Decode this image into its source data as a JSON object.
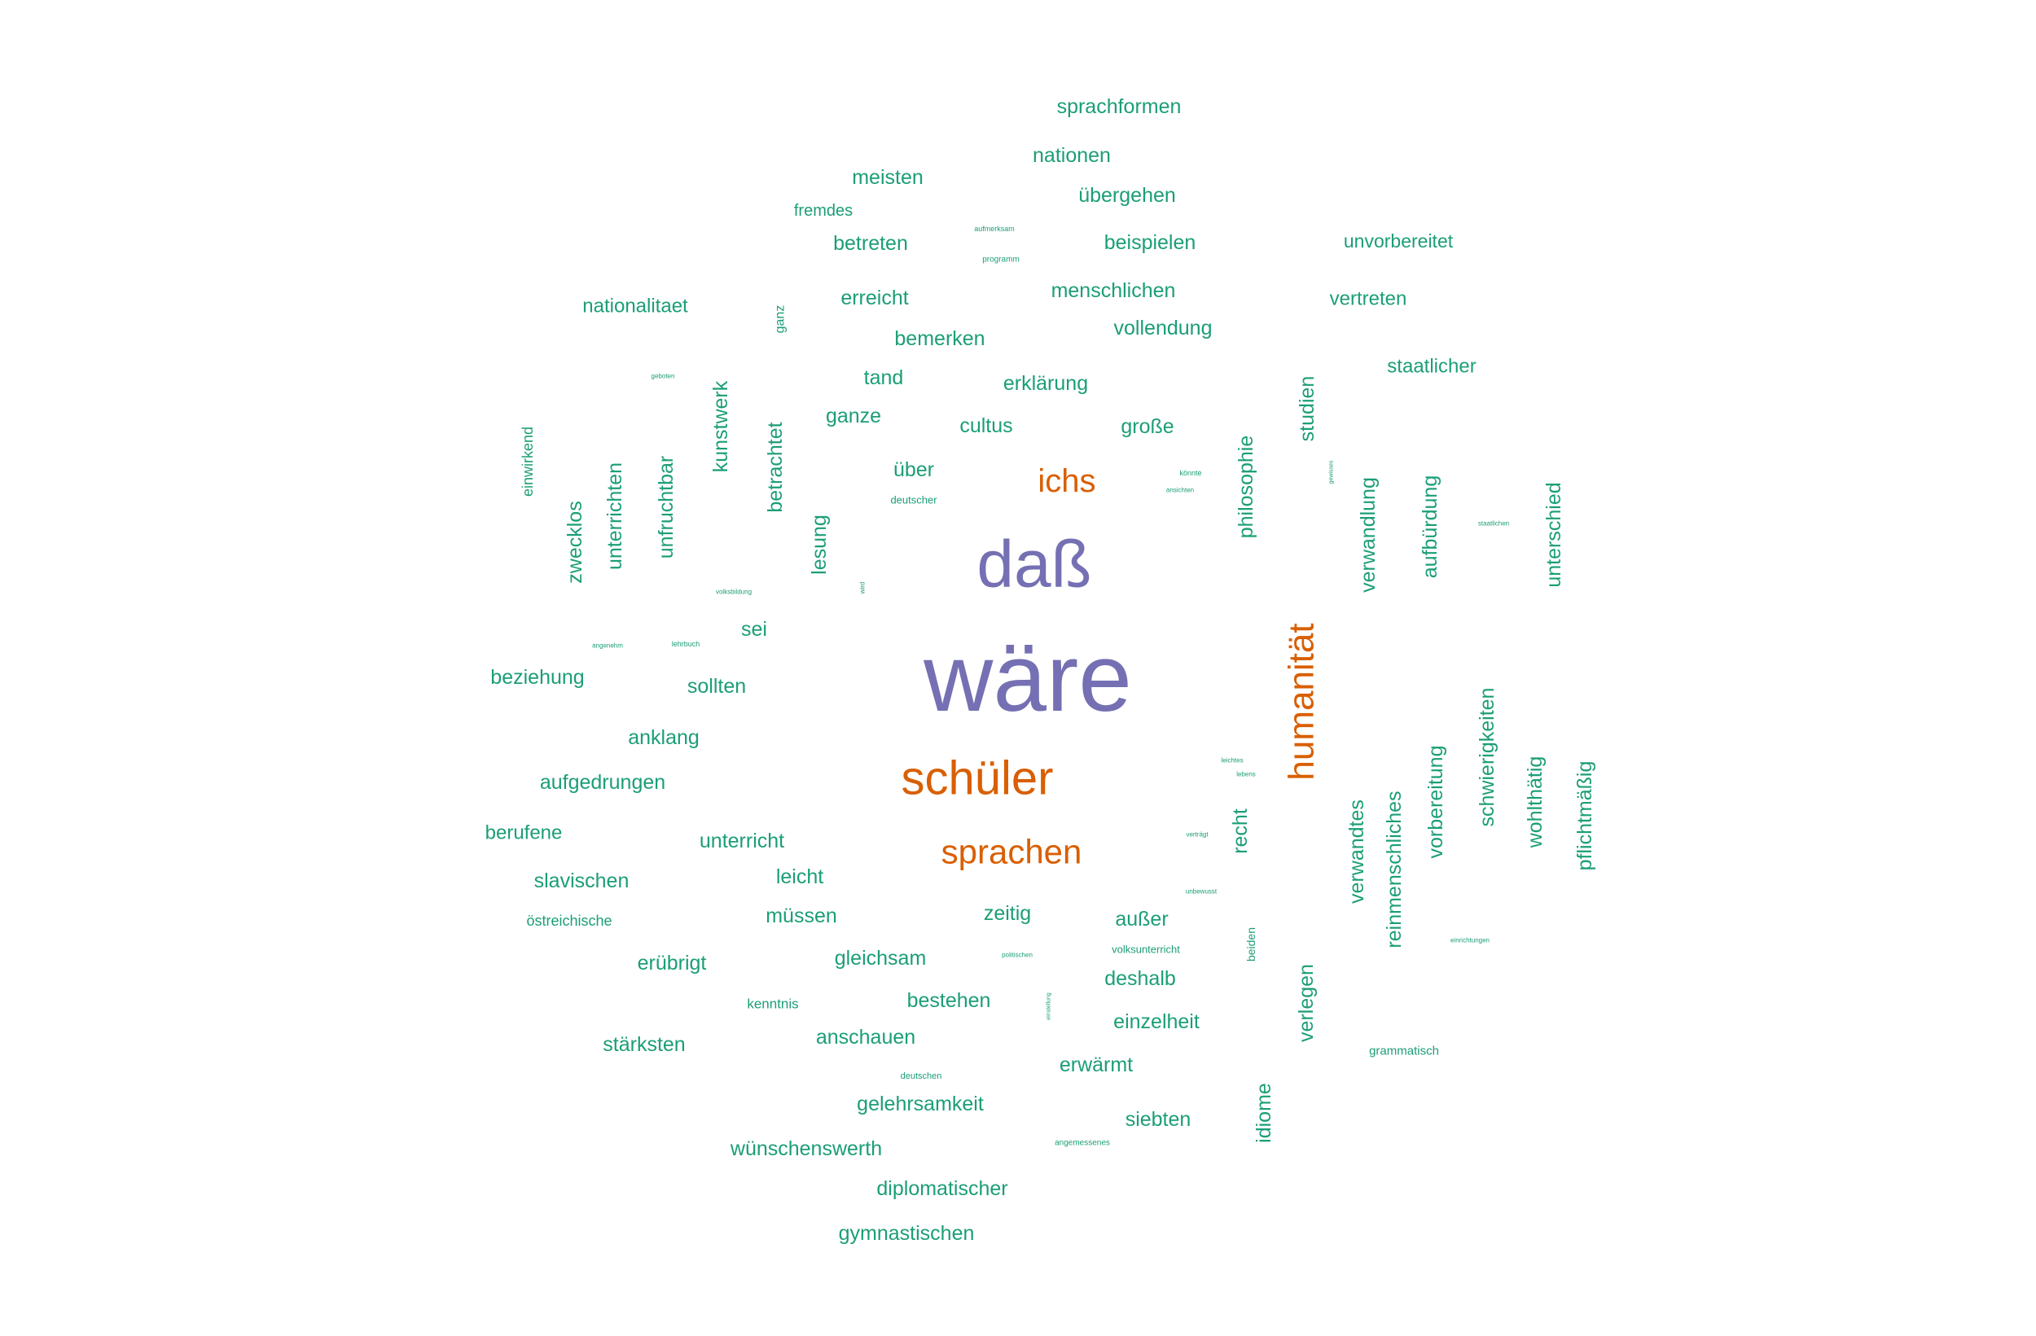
{
  "wordcloud": {
    "palette": {
      "top": "#7570b3",
      "second": "#d95f02",
      "base": "#1b9e77"
    },
    "words": [
      {
        "text": "wäre",
        "rank": 1
      },
      {
        "text": "daß",
        "rank": 1
      },
      {
        "text": "schüler",
        "rank": 2
      },
      {
        "text": "humanität",
        "rank": 2
      },
      {
        "text": "sprachen",
        "rank": 2
      },
      {
        "text": "ichs",
        "rank": 2
      },
      {
        "text": "sprachformen",
        "rank": 3
      },
      {
        "text": "nationen",
        "rank": 3
      },
      {
        "text": "meisten",
        "rank": 3
      },
      {
        "text": "übergehen",
        "rank": 3
      },
      {
        "text": "fremdes",
        "rank": 3
      },
      {
        "text": "betreten",
        "rank": 3
      },
      {
        "text": "beispielen",
        "rank": 3
      },
      {
        "text": "unvorbereitet",
        "rank": 3
      },
      {
        "text": "erreicht",
        "rank": 3
      },
      {
        "text": "menschlichen",
        "rank": 3
      },
      {
        "text": "nationalitaet",
        "rank": 3
      },
      {
        "text": "vertreten",
        "rank": 3
      },
      {
        "text": "vollendung",
        "rank": 3
      },
      {
        "text": "bemerken",
        "rank": 3
      },
      {
        "text": "staatlicher",
        "rank": 3
      },
      {
        "text": "tand",
        "rank": 3
      },
      {
        "text": "erklärung",
        "rank": 3
      },
      {
        "text": "ganze",
        "rank": 3
      },
      {
        "text": "cultus",
        "rank": 3
      },
      {
        "text": "große",
        "rank": 3
      },
      {
        "text": "über",
        "rank": 3
      },
      {
        "text": "sei",
        "rank": 3
      },
      {
        "text": "beziehung",
        "rank": 3
      },
      {
        "text": "sollten",
        "rank": 3
      },
      {
        "text": "anklang",
        "rank": 3
      },
      {
        "text": "aufgedrungen",
        "rank": 3
      },
      {
        "text": "berufene",
        "rank": 3
      },
      {
        "text": "unterricht",
        "rank": 3
      },
      {
        "text": "slavischen",
        "rank": 3
      },
      {
        "text": "leicht",
        "rank": 3
      },
      {
        "text": "müssen",
        "rank": 3
      },
      {
        "text": "zeitig",
        "rank": 3
      },
      {
        "text": "außer",
        "rank": 3
      },
      {
        "text": "erübrigt",
        "rank": 3
      },
      {
        "text": "gleichsam",
        "rank": 3
      },
      {
        "text": "deshalb",
        "rank": 3
      },
      {
        "text": "bestehen",
        "rank": 3
      },
      {
        "text": "einzelheit",
        "rank": 3
      },
      {
        "text": "stärksten",
        "rank": 3
      },
      {
        "text": "anschauen",
        "rank": 3
      },
      {
        "text": "erwärmt",
        "rank": 3
      },
      {
        "text": "gelehrsamkeit",
        "rank": 3
      },
      {
        "text": "siebten",
        "rank": 3
      },
      {
        "text": "wünschenswerth",
        "rank": 3
      },
      {
        "text": "diplomatischer",
        "rank": 3
      },
      {
        "text": "gymnastischen",
        "rank": 3
      },
      {
        "text": "kunstwerk",
        "rank": 3
      },
      {
        "text": "betrachtet",
        "rank": 3
      },
      {
        "text": "unfruchtbar",
        "rank": 3
      },
      {
        "text": "unterrichten",
        "rank": 3
      },
      {
        "text": "zwecklos",
        "rank": 3
      },
      {
        "text": "lesung",
        "rank": 3
      },
      {
        "text": "philosophie",
        "rank": 3
      },
      {
        "text": "studien",
        "rank": 3
      },
      {
        "text": "verwandlung",
        "rank": 3
      },
      {
        "text": "aufbürdung",
        "rank": 3
      },
      {
        "text": "unterschied",
        "rank": 3
      },
      {
        "text": "schwierigkeiten",
        "rank": 3
      },
      {
        "text": "wohlthätig",
        "rank": 3
      },
      {
        "text": "pflichtmäßig",
        "rank": 3
      },
      {
        "text": "vorbereitung",
        "rank": 3
      },
      {
        "text": "reinmenschliches",
        "rank": 3
      },
      {
        "text": "verwandtes",
        "rank": 3
      },
      {
        "text": "recht",
        "rank": 3
      },
      {
        "text": "verlegen",
        "rank": 3
      },
      {
        "text": "idiome",
        "rank": 3
      },
      {
        "text": "einwirkend",
        "rank": 3
      },
      {
        "text": "ganz",
        "rank": 3
      },
      {
        "text": "beiden",
        "rank": 3
      },
      {
        "text": "östreichische",
        "rank": 3
      },
      {
        "text": "kenntnis",
        "rank": 3
      },
      {
        "text": "volksunterricht",
        "rank": 3
      },
      {
        "text": "grammatisch",
        "rank": 3
      },
      {
        "text": "deutscher",
        "rank": 3
      },
      {
        "text": "deutschen",
        "rank": 3
      },
      {
        "text": "programm",
        "rank": 3
      },
      {
        "text": "aufmerksam",
        "rank": 3
      },
      {
        "text": "angemessenes",
        "rank": 3
      },
      {
        "text": "lehrbuch",
        "rank": 3
      },
      {
        "text": "angenehm",
        "rank": 3
      },
      {
        "text": "volksbildung",
        "rank": 3
      },
      {
        "text": "könnte",
        "rank": 3
      },
      {
        "text": "ansichten",
        "rank": 3
      },
      {
        "text": "staatlichen",
        "rank": 3
      },
      {
        "text": "geboten",
        "rank": 3
      },
      {
        "text": "leichtes",
        "rank": 3
      },
      {
        "text": "lebens",
        "rank": 3
      },
      {
        "text": "verträgt",
        "rank": 3
      },
      {
        "text": "unbewusst",
        "rank": 3
      },
      {
        "text": "politischen",
        "rank": 3
      },
      {
        "text": "einrichtungen",
        "rank": 3
      },
      {
        "text": "wird",
        "rank": 3
      },
      {
        "text": "gewisses",
        "rank": 3
      },
      {
        "text": "einstellung",
        "rank": 3
      }
    ]
  }
}
